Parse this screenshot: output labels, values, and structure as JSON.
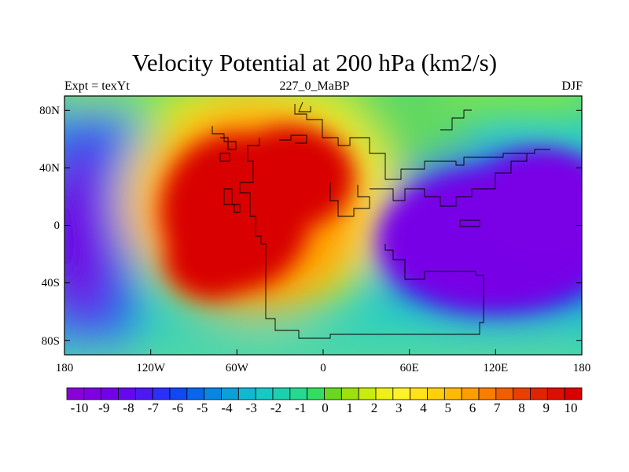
{
  "title": "Velocity Potential at 200 hPa (km2/s)",
  "subtitle_left": "Expt = texYt",
  "subtitle_center": "227_0_MaBP",
  "subtitle_right": "DJF",
  "x_ticks": [
    "180",
    "120W",
    "60W",
    "0",
    "60E",
    "120E",
    "180"
  ],
  "y_ticks": [
    "80N",
    "40N",
    "0",
    "40S",
    "80S"
  ],
  "colorbar": {
    "labels": [
      "-10",
      "-9",
      "-8",
      "-7",
      "-6",
      "-5",
      "-4",
      "-3",
      "-2",
      "-1",
      "0",
      "1",
      "2",
      "3",
      "4",
      "5",
      "6",
      "7",
      "8",
      "9",
      "10"
    ],
    "colors": [
      "#8a00d8",
      "#7f00e0",
      "#7400e8",
      "#6508ee",
      "#4d18f2",
      "#2a30f5",
      "#1048f2",
      "#0866ea",
      "#0a85e0",
      "#0c9fd8",
      "#12b8d2",
      "#18c8c4",
      "#1ecfae",
      "#26d890",
      "#36dc62",
      "#6ad820",
      "#9ce010",
      "#c8ec10",
      "#eef018",
      "#fff22a",
      "#ffe21a",
      "#ffcf10",
      "#ffba08",
      "#ff9e02",
      "#f87e00",
      "#f05e00",
      "#e84000",
      "#e02400",
      "#dc1000",
      "#d80000"
    ]
  },
  "map": {
    "projection": "cylindrical equidistant",
    "lon_range": [
      -180,
      180
    ],
    "lat_range": [
      -90,
      90
    ],
    "field": "velocity potential anomaly",
    "units": "km2/s",
    "features": [
      {
        "name": "maximum",
        "approx_lon": -60,
        "approx_lat": 10,
        "value": 10
      },
      {
        "name": "minimum",
        "approx_lon": 110,
        "approx_lat": -10,
        "value": -10
      },
      {
        "name": "secondary minimum",
        "approx_lon": -165,
        "approx_lat": 0,
        "value": -10
      }
    ]
  }
}
